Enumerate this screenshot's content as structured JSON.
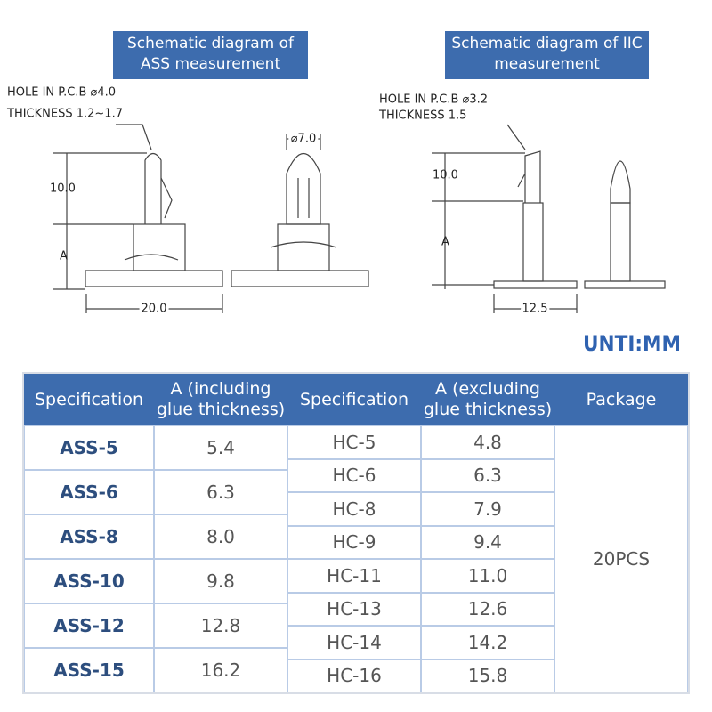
{
  "diagrams": {
    "left": {
      "title": "Schematic diagram of ASS measurement",
      "hole": "HOLE IN P.C.B ⌀4.0",
      "thickness": "THICKNESS 1.2~1.7",
      "height": "10.0",
      "a": "A",
      "width": "20.0",
      "diameter": "⌀7.0"
    },
    "right": {
      "title": "Schematic diagram of IIC measurement",
      "hole": "HOLE IN P.C.B ⌀3.2",
      "thickness": "THICKNESS 1.5",
      "height": "10.0",
      "a": "A",
      "width": "12.5"
    },
    "unit": "UNTI:MM"
  },
  "table": {
    "headers": [
      "Specification",
      "A (including glue thickness)",
      "Specification",
      "A (excluding glue thickness)",
      "Package"
    ],
    "ass_rows": [
      [
        "ASS-5",
        "5.4"
      ],
      [
        "ASS-6",
        "6.3"
      ],
      [
        "ASS-8",
        "8.0"
      ],
      [
        "ASS-10",
        "9.8"
      ],
      [
        "ASS-12",
        "12.8"
      ],
      [
        "ASS-15",
        "16.2"
      ]
    ],
    "hc_rows": [
      [
        "HC-5",
        "4.8"
      ],
      [
        "HC-6",
        "6.3"
      ],
      [
        "HC-8",
        "7.9"
      ],
      [
        "HC-9",
        "9.4"
      ],
      [
        "HC-11",
        "11.0"
      ],
      [
        "HC-13",
        "12.6"
      ],
      [
        "HC-14",
        "14.2"
      ],
      [
        "HC-16",
        "15.8"
      ]
    ],
    "package": "20PCS"
  }
}
